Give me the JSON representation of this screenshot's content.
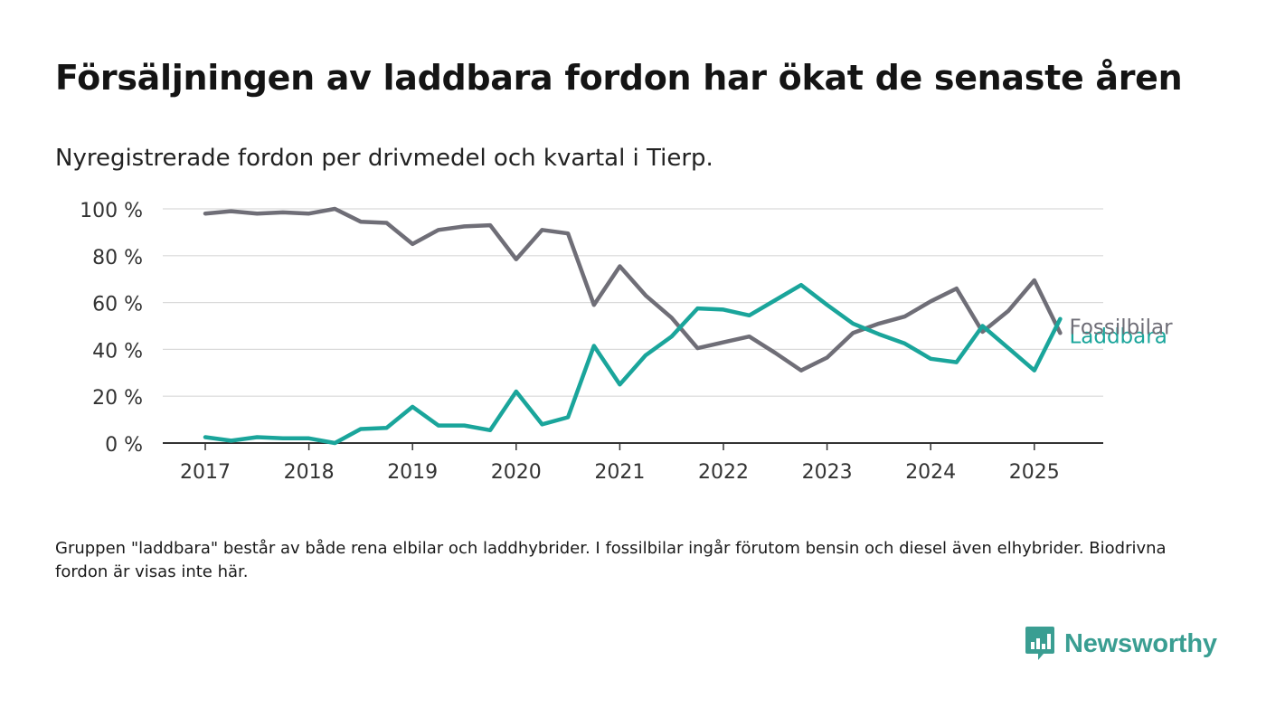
{
  "title": "Försäljningen av laddbara fordon har ökat de senaste åren",
  "subtitle": "Nyregistrerade fordon per drivmedel och kvartal i Tierp.",
  "footnote": "Gruppen \"laddbara\" består av både rena elbilar och laddhybrider. I fossilbilar ingår förutom bensin och diesel även elhybrider. Biodrivna fordon är visas inte här.",
  "brand": {
    "name": "Newsworthy",
    "icon": "bar-chart-speech-bubble-icon",
    "color": "#3a9e92"
  },
  "chart_data": {
    "type": "line",
    "x_start_year": 2017,
    "x_tick_labels": [
      "2017",
      "2018",
      "2019",
      "2020",
      "2021",
      "2022",
      "2023",
      "2024",
      "2025"
    ],
    "x_ticks": [
      2017,
      2018,
      2019,
      2020,
      2021,
      2022,
      2023,
      2024,
      2025
    ],
    "y_ticks": [
      0,
      20,
      40,
      60,
      80,
      100
    ],
    "y_tick_labels": [
      "0 %",
      "20 %",
      "40 %",
      "60 %",
      "80 %",
      "100 %"
    ],
    "ylim": [
      0,
      100
    ],
    "xlabel": "",
    "ylabel": "",
    "grid": true,
    "legend": "direct labels at line ends (right)",
    "series": [
      {
        "name": "Fossilbilar",
        "color": "#6f6e77",
        "values": [
          98,
          99,
          98,
          98.5,
          98,
          100,
          94.5,
          94,
          85,
          91,
          92.5,
          93,
          78.5,
          91,
          89.5,
          59,
          75.5,
          63,
          53.5,
          40.5,
          43,
          45.5,
          38.5,
          31,
          36.5,
          47,
          51,
          54,
          60.5,
          66,
          47.5,
          56.5,
          69.5,
          47
        ]
      },
      {
        "name": "Laddbara",
        "color": "#1aa59b",
        "values": [
          2.5,
          1,
          2.5,
          2,
          2,
          0,
          6,
          6.5,
          15.5,
          7.5,
          7.5,
          5.5,
          22,
          8,
          11,
          41.5,
          25,
          37.5,
          45.5,
          57.5,
          57,
          54.5,
          61,
          67.5,
          59,
          51,
          46.5,
          42.5,
          36,
          34.5,
          50,
          40.5,
          31,
          53
        ]
      }
    ]
  }
}
